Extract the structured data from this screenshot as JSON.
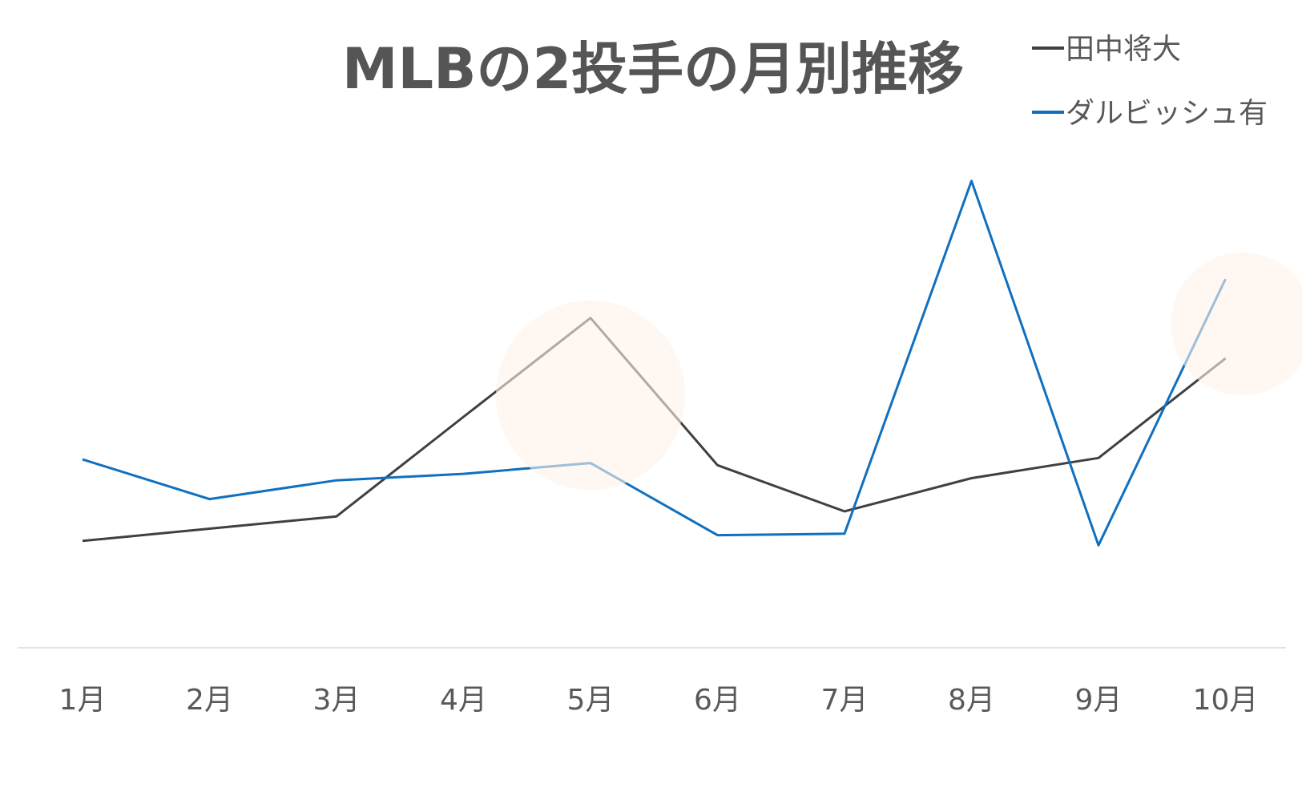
{
  "chart_data": {
    "type": "line",
    "title": "MLBの2投手の月別推移",
    "xlabel": "",
    "ylabel": "",
    "categories": [
      "1月",
      "2月",
      "3月",
      "4月",
      "5月",
      "6月",
      "7月",
      "8月",
      "9月",
      "10月"
    ],
    "series": [
      {
        "name": "田中将大",
        "color": "#404040",
        "values": [
          14.8,
          16.5,
          18.2,
          32.0,
          45.7,
          25.3,
          18.9,
          23.5,
          26.3,
          40.1
        ]
      },
      {
        "name": "ダルビッシュ有",
        "color": "#1070BF",
        "values": [
          26.1,
          20.6,
          23.2,
          24.1,
          25.6,
          15.6,
          15.8,
          64.7,
          14.2,
          51.1
        ]
      }
    ],
    "ylim": [
      0,
      72
    ],
    "grid": false,
    "y_axis_visible": false,
    "legend_position": "top-right",
    "highlights": [
      {
        "category": "5月",
        "color": "#FDF2E9"
      },
      {
        "category": "10月",
        "color": "#FDF2E9"
      }
    ]
  }
}
